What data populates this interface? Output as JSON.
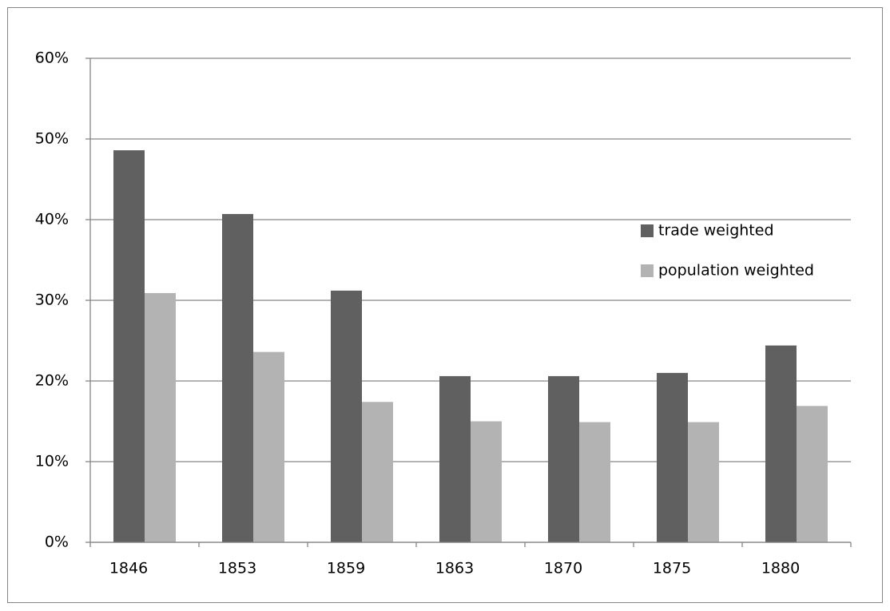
{
  "chart_data": {
    "type": "bar",
    "categories": [
      "1846",
      "1853",
      "1859",
      "1863",
      "1870",
      "1875",
      "1880"
    ],
    "series": [
      {
        "name": "trade weighted",
        "color": "#606060",
        "values": [
          48.6,
          40.7,
          31.2,
          20.6,
          20.6,
          21.0,
          24.4
        ]
      },
      {
        "name": "population weighted",
        "color": "#b3b3b3",
        "values": [
          30.9,
          23.6,
          17.4,
          15.0,
          14.9,
          14.9,
          16.9
        ]
      }
    ],
    "ylim": [
      0,
      60
    ],
    "yticks": [
      {
        "value": 0,
        "label": "0%"
      },
      {
        "value": 10,
        "label": "10%"
      },
      {
        "value": 20,
        "label": "20%"
      },
      {
        "value": 30,
        "label": "30%"
      },
      {
        "value": 40,
        "label": "40%"
      },
      {
        "value": 50,
        "label": "50%"
      },
      {
        "value": 60,
        "label": "60%"
      }
    ],
    "grid": true,
    "legend": "right"
  }
}
